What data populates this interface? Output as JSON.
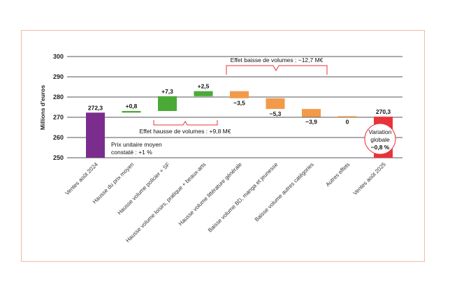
{
  "chart_data": {
    "type": "waterfall",
    "ylabel": "Millions d'euros",
    "ylim": [
      250,
      300
    ],
    "yticks": [
      "300",
      "290",
      "280",
      "270",
      "260",
      "250"
    ],
    "grid": true,
    "categories": [
      "Ventes août 2024",
      "Hausse du prix moyen",
      "Hausse volume policier + SF",
      "Hausse volume loisirs, pratique + beaux-arts",
      "Hausse volume littérature générale",
      "Baisse volume BD, manga et jeunesse",
      "Baisse volume autres catégories",
      "Autres effets",
      "Ventes août 2025"
    ],
    "values": [
      272.3,
      0.8,
      7.3,
      2.5,
      -3.5,
      -5.3,
      -3.9,
      0,
      270.3
    ],
    "labels": [
      "272,3",
      "+0,8",
      "+7,3",
      "+2,5",
      "−3,5",
      "−5,3",
      "−3,9",
      "0",
      "270,3"
    ],
    "kinds": [
      "total",
      "up",
      "up",
      "up",
      "down",
      "down",
      "down",
      "down",
      "total"
    ],
    "colors": {
      "start": "#7b2d8e",
      "up": "#4aaa35",
      "down": "#f39a4a",
      "end": "#e8333a",
      "brace": "#e8333a",
      "grid": "#555555",
      "frame": "#f4b8a6"
    },
    "annotations": {
      "prix_line1": "Prix unitaire moyen",
      "prix_line2": "constaté : +1 %",
      "hausse": "Effet hausse de volumes : +9,8 M€",
      "baisse": "Effet baisse de volumes : −12,7 M€",
      "variation_line1": "Variation",
      "variation_line2": "globale",
      "variation_value": "−0,8 %"
    }
  }
}
